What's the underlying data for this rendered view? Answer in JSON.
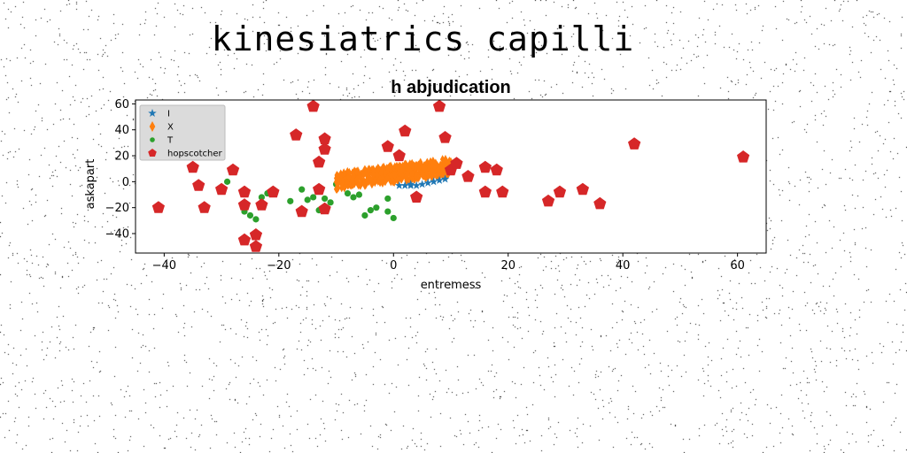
{
  "figure": {
    "suptitle": "kinesiatrics capilli"
  },
  "colors": {
    "I": "#1f77b4",
    "X": "#ff7f0e",
    "T": "#2ca02c",
    "hopscotcher": "#d62728"
  },
  "chart_data": {
    "type": "scatter",
    "title": "h abjudication",
    "xlabel": "entremess",
    "ylabel": "askapart",
    "xlim": [
      -45,
      65
    ],
    "ylim": [
      -55,
      63
    ],
    "xticks": [
      -40,
      -20,
      0,
      20,
      40,
      60
    ],
    "yticks": [
      -40,
      -20,
      0,
      20,
      40,
      60
    ],
    "grid": false,
    "legend_position": "top-left",
    "series": [
      {
        "name": "I",
        "marker": "star",
        "points": [
          [
            1,
            -3
          ],
          [
            2,
            -3
          ],
          [
            3,
            -3
          ],
          [
            4,
            -3
          ],
          [
            5,
            -2
          ],
          [
            6,
            -1
          ],
          [
            7,
            0
          ],
          [
            8,
            1
          ],
          [
            9,
            2
          ],
          [
            3,
            -2
          ]
        ]
      },
      {
        "name": "X",
        "marker": "thin_diamond",
        "band": {
          "x_start": -10,
          "x_end": 10,
          "y_start_low": -6,
          "y_start_high": 7,
          "y_end_low": 5,
          "y_end_high": 18
        }
      },
      {
        "name": "T",
        "marker": "circle",
        "points": [
          [
            -29,
            0
          ],
          [
            -26,
            -23
          ],
          [
            -25,
            -26
          ],
          [
            -24,
            -29
          ],
          [
            -23,
            -12
          ],
          [
            -22,
            -9
          ],
          [
            -21,
            -6
          ],
          [
            -16,
            -6
          ],
          [
            -15,
            -14
          ],
          [
            -14,
            -12
          ],
          [
            -13,
            -22
          ],
          [
            -12,
            -13
          ],
          [
            -11,
            -16
          ],
          [
            -10,
            -2
          ],
          [
            -8,
            -9
          ],
          [
            -7,
            -12
          ],
          [
            -6,
            -10
          ],
          [
            -5,
            -26
          ],
          [
            -4,
            -22
          ],
          [
            -3,
            -20
          ],
          [
            -1,
            -13
          ],
          [
            -1,
            -23
          ],
          [
            0,
            -28
          ],
          [
            -18,
            -15
          ]
        ]
      },
      {
        "name": "hopscotcher",
        "marker": "pentagon",
        "points": [
          [
            -41,
            -20
          ],
          [
            -35,
            11
          ],
          [
            -34,
            -3
          ],
          [
            -33,
            -20
          ],
          [
            -30,
            -6
          ],
          [
            -28,
            9
          ],
          [
            -26,
            -8
          ],
          [
            -26,
            -18
          ],
          [
            -26,
            -45
          ],
          [
            -24,
            -41
          ],
          [
            -24,
            -50
          ],
          [
            -23,
            -18
          ],
          [
            -21,
            -8
          ],
          [
            -17,
            36
          ],
          [
            -16,
            -23
          ],
          [
            -14,
            58
          ],
          [
            -13,
            15
          ],
          [
            -13,
            -6
          ],
          [
            -12,
            25
          ],
          [
            -12,
            -21
          ],
          [
            -12,
            33
          ],
          [
            -1,
            27
          ],
          [
            1,
            20
          ],
          [
            2,
            39
          ],
          [
            4,
            -12
          ],
          [
            8,
            58
          ],
          [
            9,
            34
          ],
          [
            10,
            9
          ],
          [
            11,
            14
          ],
          [
            13,
            4
          ],
          [
            16,
            11
          ],
          [
            16,
            -8
          ],
          [
            18,
            9
          ],
          [
            19,
            -8
          ],
          [
            27,
            -15
          ],
          [
            29,
            -8
          ],
          [
            33,
            -6
          ],
          [
            36,
            -17
          ],
          [
            42,
            29
          ],
          [
            61,
            19
          ]
        ]
      }
    ]
  }
}
